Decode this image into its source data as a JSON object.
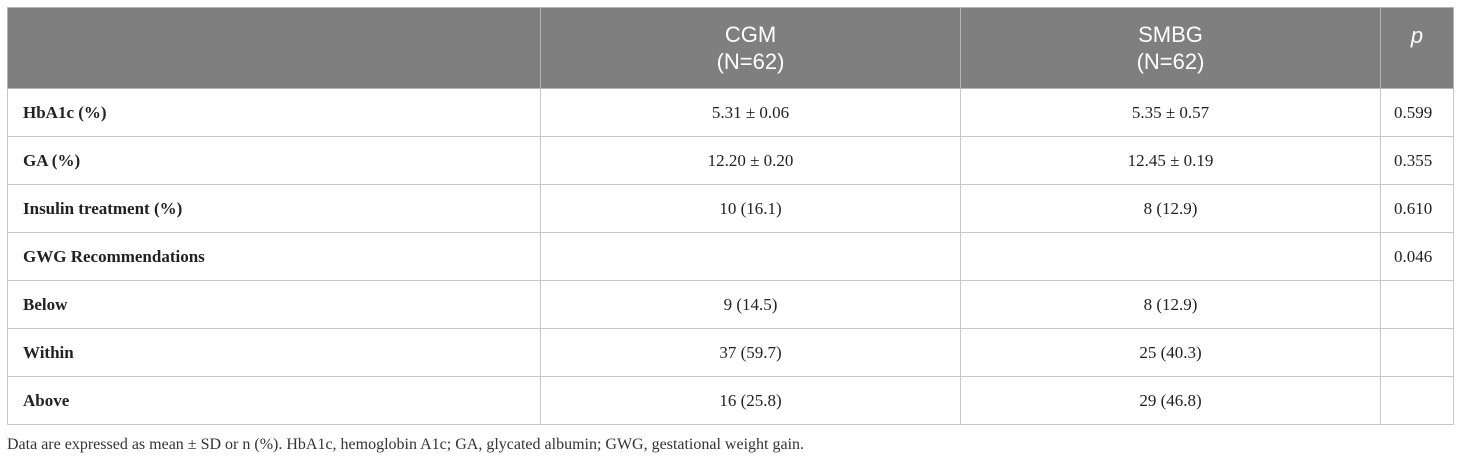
{
  "table": {
    "headers": {
      "label": "",
      "cgm_line1": "CGM",
      "cgm_line2": "(N=62)",
      "smbg_line1": "SMBG",
      "smbg_line2": "(N=62)",
      "p": "p"
    },
    "rows": [
      {
        "label": "HbA1c (%)",
        "cgm": "5.31 ± 0.06",
        "smbg": "5.35 ± 0.57",
        "p": "0.599"
      },
      {
        "label": "GA (%)",
        "cgm": "12.20 ± 0.20",
        "smbg": "12.45 ± 0.19",
        "p": "0.355"
      },
      {
        "label": "Insulin treatment (%)",
        "cgm": "10 (16.1)",
        "smbg": "8 (12.9)",
        "p": "0.610"
      },
      {
        "label": "GWG Recommendations",
        "cgm": "",
        "smbg": "",
        "p": "0.046"
      },
      {
        "label": "Below",
        "cgm": "9 (14.5)",
        "smbg": "8 (12.9)",
        "p": ""
      },
      {
        "label": "Within",
        "cgm": "37 (59.7)",
        "smbg": "25 (40.3)",
        "p": ""
      },
      {
        "label": "Above",
        "cgm": "16 (25.8)",
        "smbg": "29 (46.8)",
        "p": ""
      }
    ]
  },
  "footnote": "Data are expressed as mean ± SD or n (%). HbA1c, hemoglobin A1c; GA, glycated albumin; GWG, gestational weight gain.",
  "colors": {
    "header_bg": "#7f7f7f",
    "header_text": "#ffffff",
    "border": "#c7c7c7"
  }
}
